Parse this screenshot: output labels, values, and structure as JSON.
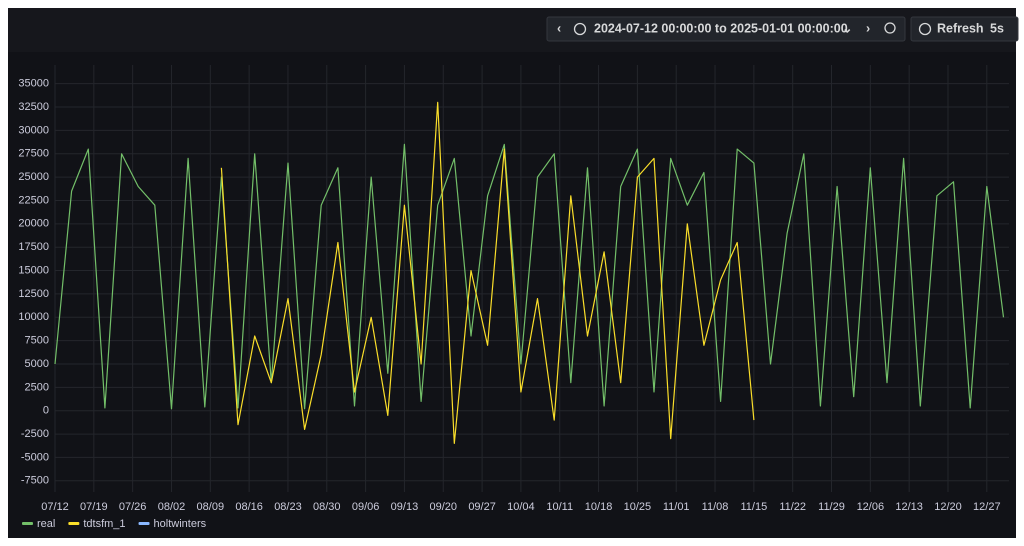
{
  "toolbar": {
    "time_range": "2024-07-12 00:00:00 to 2025-01-01 00:00:00",
    "refresh": "Refresh",
    "interval": "5s"
  },
  "chart_data": {
    "type": "line",
    "x": [
      0,
      3,
      6,
      9,
      12,
      15,
      18,
      21,
      24,
      27,
      30,
      33,
      36,
      39,
      42,
      45,
      48,
      51,
      54,
      57,
      60,
      63,
      66,
      69,
      72,
      75,
      78,
      81,
      84,
      87,
      90,
      93,
      96,
      99,
      102,
      105,
      108,
      111,
      114,
      117,
      120,
      123,
      126,
      129,
      132,
      135,
      138,
      141,
      144,
      147,
      150,
      153,
      156,
      159,
      162,
      165,
      168,
      171
    ],
    "xlim": [
      0,
      172
    ],
    "xticks": [
      {
        "value": 0,
        "label": "07/12"
      },
      {
        "value": 7,
        "label": "07/19"
      },
      {
        "value": 14,
        "label": "07/26"
      },
      {
        "value": 21,
        "label": "08/02"
      },
      {
        "value": 28,
        "label": "08/09"
      },
      {
        "value": 35,
        "label": "08/16"
      },
      {
        "value": 42,
        "label": "08/23"
      },
      {
        "value": 49,
        "label": "08/30"
      },
      {
        "value": 56,
        "label": "09/06"
      },
      {
        "value": 63,
        "label": "09/13"
      },
      {
        "value": 70,
        "label": "09/20"
      },
      {
        "value": 77,
        "label": "09/27"
      },
      {
        "value": 84,
        "label": "10/04"
      },
      {
        "value": 91,
        "label": "10/11"
      },
      {
        "value": 98,
        "label": "10/18"
      },
      {
        "value": 105,
        "label": "10/25"
      },
      {
        "value": 112,
        "label": "11/01"
      },
      {
        "value": 119,
        "label": "11/08"
      },
      {
        "value": 126,
        "label": "11/15"
      },
      {
        "value": 133,
        "label": "11/22"
      },
      {
        "value": 140,
        "label": "11/29"
      },
      {
        "value": 147,
        "label": "12/06"
      },
      {
        "value": 154,
        "label": "12/13"
      },
      {
        "value": 161,
        "label": "12/20"
      },
      {
        "value": 168,
        "label": "12/27"
      }
    ],
    "ylim": [
      -8700,
      37000
    ],
    "yticks": [
      -7500,
      -5000,
      -2500,
      0,
      2500,
      5000,
      7500,
      10000,
      12500,
      15000,
      17500,
      20000,
      22500,
      25000,
      27500,
      30000,
      32500,
      35000
    ],
    "grid": true,
    "series": [
      {
        "name": "real",
        "color": "#73bf69",
        "values": [
          5000,
          23500,
          28000,
          300,
          27500,
          24000,
          22000,
          200,
          27000,
          400,
          25000,
          300,
          27500,
          3000,
          26500,
          200,
          22000,
          26000,
          500,
          25000,
          4000,
          28500,
          1000,
          22000,
          27000,
          8000,
          23000,
          28500,
          5000,
          25000,
          27500,
          3000,
          26000,
          500,
          24000,
          28000,
          2000,
          27000,
          22000,
          25500,
          1000,
          28000,
          26500,
          5000,
          19000,
          27500,
          500,
          24000,
          1500,
          26000,
          3000,
          27000,
          500,
          23000,
          24500,
          300,
          24000,
          10000
        ]
      },
      {
        "name": "tdtsfm_1",
        "color": "#fade2a",
        "values": [
          null,
          null,
          null,
          null,
          null,
          null,
          null,
          null,
          null,
          null,
          26000,
          -1500,
          8000,
          3000,
          12000,
          -2000,
          6000,
          18000,
          2000,
          10000,
          -500,
          22000,
          5000,
          33000,
          -3500,
          15000,
          7000,
          28000,
          2000,
          12000,
          -1000,
          23000,
          8000,
          17000,
          3000,
          25000,
          27000,
          -3000,
          20000,
          7000,
          14000,
          18000,
          -1000,
          null,
          null,
          null,
          null,
          null,
          null,
          null,
          null,
          null,
          null,
          null,
          null,
          null,
          null,
          null
        ]
      },
      {
        "name": "holtwinters",
        "color": "#8ab8ff",
        "values": [
          null,
          null,
          null,
          null,
          null,
          null,
          null,
          null,
          null,
          null,
          null,
          null,
          null,
          null,
          null,
          null,
          null,
          null,
          null,
          null,
          null,
          null,
          null,
          null,
          null,
          null,
          null,
          null,
          null,
          null,
          null,
          null,
          null,
          null,
          null,
          null,
          null,
          null,
          null,
          null,
          null,
          null,
          null,
          null,
          null,
          null,
          null,
          null,
          null,
          null,
          null,
          null,
          null,
          null,
          null,
          null,
          null,
          null
        ]
      }
    ]
  }
}
